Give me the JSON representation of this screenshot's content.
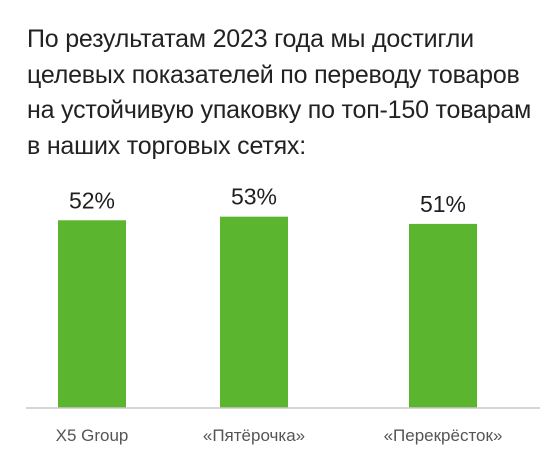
{
  "title": "По результатам 2023 года мы достигли целевых показателей по переводу товаров на устойчивую упаковку по топ-150 товарам в наших торговых сетях:",
  "colors": {
    "bar": "#5cb52e",
    "baseline": "#c9c9c9",
    "value_text": "#1f1f1f",
    "category_text": "#555555"
  },
  "chart_data": {
    "type": "bar",
    "categories": [
      "X5 Group",
      "«Пятёрочка»",
      "«Перекрёсток»"
    ],
    "values": [
      52,
      53,
      51
    ],
    "data_labels": [
      "52%",
      "53%",
      "51%"
    ],
    "unit": "%",
    "ylim": [
      0,
      100
    ],
    "grid": false,
    "legend": "none"
  }
}
